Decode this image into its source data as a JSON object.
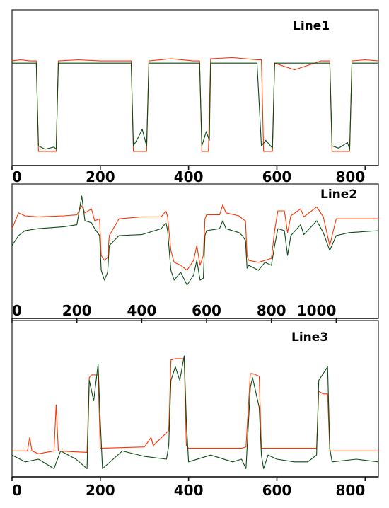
{
  "colors": {
    "series_a": "#ff3300",
    "series_b": "#0b4d14",
    "frame": "#222222"
  },
  "chart_data": [
    {
      "type": "line",
      "title": "Line1",
      "xlim": [
        0,
        830
      ],
      "xticks": [
        0,
        200,
        400,
        600,
        800
      ],
      "ylim": [
        0,
        1
      ],
      "grid": false,
      "series": [
        {
          "color_key": "series_a",
          "x": [
            0,
            20,
            40,
            55,
            60,
            100,
            105,
            150,
            200,
            270,
            275,
            305,
            310,
            360,
            410,
            425,
            430,
            445,
            450,
            500,
            555,
            565,
            570,
            590,
            595,
            640,
            700,
            720,
            725,
            765,
            770,
            800,
            830
          ],
          "y": [
            0.82,
            0.83,
            0.82,
            0.82,
            0.0,
            0.0,
            0.82,
            0.83,
            0.82,
            0.82,
            0.0,
            0.0,
            0.82,
            0.84,
            0.82,
            0.82,
            0.0,
            0.0,
            0.84,
            0.85,
            0.83,
            0.83,
            0.0,
            0.0,
            0.8,
            0.74,
            0.82,
            0.82,
            0.0,
            0.0,
            0.82,
            0.83,
            0.82
          ]
        },
        {
          "color_key": "series_b",
          "x": [
            0,
            55,
            60,
            75,
            95,
            100,
            105,
            200,
            270,
            275,
            285,
            295,
            305,
            310,
            425,
            430,
            440,
            447,
            450,
            555,
            565,
            575,
            590,
            595,
            720,
            725,
            740,
            760,
            765,
            770,
            830
          ],
          "y": [
            0.8,
            0.8,
            0.05,
            0.02,
            0.04,
            0.02,
            0.8,
            0.8,
            0.8,
            0.05,
            0.12,
            0.2,
            0.05,
            0.8,
            0.8,
            0.05,
            0.18,
            0.1,
            0.8,
            0.8,
            0.05,
            0.1,
            0.03,
            0.8,
            0.8,
            0.05,
            0.03,
            0.08,
            0.02,
            0.8,
            0.8
          ]
        }
      ]
    },
    {
      "type": "line",
      "title": "Line2",
      "xlim": [
        0,
        1130
      ],
      "xticks": [
        0,
        200,
        400,
        600,
        800,
        1000
      ],
      "ylim": [
        0,
        1
      ],
      "grid": false,
      "series": [
        {
          "color_key": "series_a",
          "x": [
            0,
            20,
            40,
            80,
            160,
            200,
            215,
            225,
            245,
            255,
            270,
            275,
            285,
            295,
            300,
            330,
            400,
            460,
            475,
            480,
            490,
            500,
            520,
            540,
            560,
            570,
            580,
            590,
            595,
            600,
            640,
            650,
            660,
            700,
            710,
            720,
            725,
            730,
            760,
            780,
            800,
            810,
            820,
            840,
            850,
            860,
            890,
            900,
            940,
            960,
            980,
            1000,
            1040,
            1130
          ],
          "y": [
            0.62,
            0.78,
            0.75,
            0.74,
            0.75,
            0.76,
            0.85,
            0.78,
            0.82,
            0.7,
            0.72,
            0.35,
            0.3,
            0.33,
            0.55,
            0.72,
            0.74,
            0.74,
            0.8,
            0.74,
            0.4,
            0.28,
            0.25,
            0.2,
            0.3,
            0.45,
            0.25,
            0.35,
            0.72,
            0.76,
            0.76,
            0.86,
            0.78,
            0.75,
            0.72,
            0.7,
            0.35,
            0.3,
            0.28,
            0.3,
            0.32,
            0.6,
            0.8,
            0.8,
            0.58,
            0.75,
            0.82,
            0.74,
            0.84,
            0.74,
            0.45,
            0.72,
            0.72,
            0.72
          ]
        },
        {
          "color_key": "series_b",
          "x": [
            0,
            20,
            40,
            80,
            160,
            200,
            215,
            225,
            245,
            255,
            270,
            275,
            285,
            295,
            300,
            330,
            400,
            460,
            475,
            480,
            490,
            500,
            520,
            540,
            560,
            570,
            580,
            590,
            595,
            600,
            640,
            650,
            660,
            700,
            710,
            720,
            725,
            730,
            760,
            780,
            800,
            810,
            820,
            840,
            850,
            860,
            890,
            900,
            940,
            960,
            980,
            1000,
            1040,
            1130
          ],
          "y": [
            0.45,
            0.55,
            0.6,
            0.62,
            0.64,
            0.66,
            0.95,
            0.7,
            0.68,
            0.62,
            0.55,
            0.2,
            0.1,
            0.18,
            0.45,
            0.55,
            0.56,
            0.62,
            0.68,
            0.6,
            0.2,
            0.1,
            0.18,
            0.05,
            0.15,
            0.3,
            0.1,
            0.12,
            0.55,
            0.6,
            0.62,
            0.7,
            0.62,
            0.58,
            0.55,
            0.5,
            0.22,
            0.25,
            0.2,
            0.28,
            0.25,
            0.45,
            0.62,
            0.6,
            0.35,
            0.55,
            0.66,
            0.56,
            0.7,
            0.58,
            0.4,
            0.55,
            0.58,
            0.6
          ]
        }
      ]
    },
    {
      "type": "line",
      "title": "Line3",
      "xlim": [
        0,
        830
      ],
      "xticks": [
        0,
        200,
        400,
        600,
        800
      ],
      "ylim": [
        0,
        1
      ],
      "grid": false,
      "series": [
        {
          "color_key": "series_a",
          "x": [
            0,
            35,
            40,
            45,
            60,
            95,
            100,
            105,
            170,
            175,
            180,
            195,
            200,
            300,
            315,
            320,
            355,
            360,
            370,
            390,
            395,
            400,
            520,
            530,
            540,
            545,
            560,
            565,
            570,
            660,
            690,
            695,
            705,
            715,
            720,
            725,
            830
          ],
          "y": [
            0.18,
            0.18,
            0.28,
            0.18,
            0.16,
            0.18,
            0.52,
            0.18,
            0.17,
            0.72,
            0.74,
            0.74,
            0.2,
            0.21,
            0.28,
            0.22,
            0.33,
            0.85,
            0.86,
            0.86,
            0.22,
            0.2,
            0.2,
            0.21,
            0.75,
            0.75,
            0.73,
            0.2,
            0.2,
            0.2,
            0.2,
            0.62,
            0.6,
            0.6,
            0.18,
            0.18,
            0.18
          ]
        },
        {
          "color_key": "series_b",
          "x": [
            0,
            30,
            60,
            95,
            110,
            145,
            170,
            175,
            185,
            195,
            200,
            205,
            250,
            300,
            350,
            355,
            360,
            370,
            380,
            390,
            395,
            400,
            450,
            500,
            520,
            530,
            540,
            545,
            560,
            565,
            570,
            580,
            600,
            640,
            670,
            690,
            695,
            705,
            715,
            720,
            725,
            780,
            830
          ],
          "y": [
            0.15,
            0.1,
            0.12,
            0.05,
            0.18,
            0.12,
            0.05,
            0.7,
            0.55,
            0.82,
            0.4,
            0.05,
            0.18,
            0.14,
            0.12,
            0.22,
            0.7,
            0.8,
            0.7,
            0.88,
            0.4,
            0.1,
            0.15,
            0.1,
            0.12,
            0.05,
            0.65,
            0.72,
            0.5,
            0.15,
            0.05,
            0.15,
            0.12,
            0.1,
            0.1,
            0.15,
            0.7,
            0.75,
            0.8,
            0.2,
            0.1,
            0.12,
            0.1
          ]
        }
      ]
    }
  ]
}
